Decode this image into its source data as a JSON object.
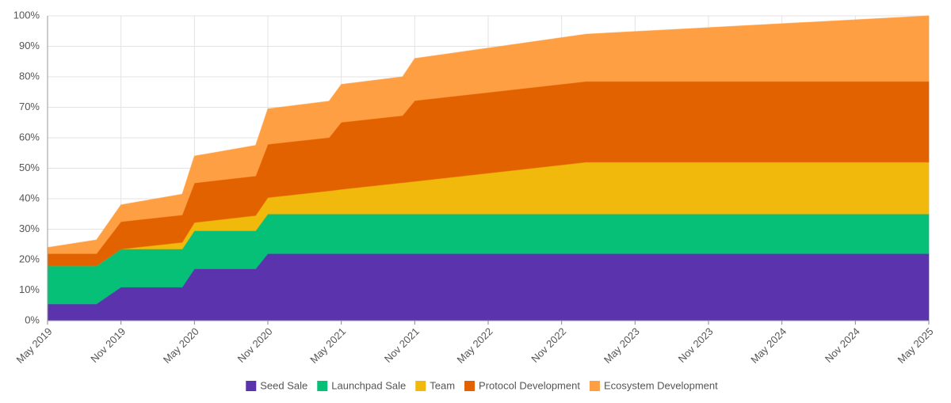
{
  "chart_data": {
    "type": "stacked-area",
    "x": [
      "2019-05",
      "2019-09",
      "2019-11",
      "2020-04",
      "2020-05",
      "2020-10",
      "2020-11",
      "2021-04",
      "2021-05",
      "2021-10",
      "2021-11",
      "2023-01",
      "2025-05"
    ],
    "series": [
      {
        "name": "Seed Sale",
        "color": "#5b34ad",
        "values": [
          5.5,
          5.5,
          11,
          11,
          17,
          17,
          22,
          22,
          22,
          22,
          22,
          22,
          22
        ]
      },
      {
        "name": "Launchpad Sale",
        "color": "#05c076",
        "values": [
          12.5,
          12.5,
          12.5,
          12.5,
          12.5,
          12.5,
          13,
          13,
          13,
          13,
          13,
          13,
          13
        ]
      },
      {
        "name": "Team",
        "color": "#f0b90b",
        "values": [
          0,
          0,
          0,
          2.2,
          2.7,
          5,
          5.4,
          7.6,
          8.1,
          10.3,
          10.7,
          17,
          17
        ]
      },
      {
        "name": "Protocol Development",
        "color": "#e36200",
        "values": [
          4,
          4,
          9,
          9,
          13,
          13,
          17.5,
          17.5,
          22,
          22,
          26.5,
          26.5,
          26.5
        ]
      },
      {
        "name": "Ecosystem Development",
        "color": "#ff9f43",
        "values": [
          2,
          4.5,
          5.5,
          6.8,
          8.8,
          10,
          11.6,
          11.9,
          12.4,
          12.7,
          13.8,
          15.5,
          21.5
        ]
      }
    ],
    "xlim": [
      "2019-05",
      "2025-05"
    ],
    "xticks": [
      {
        "value": "2019-05",
        "label": "May 2019"
      },
      {
        "value": "2019-11",
        "label": "Nov 2019"
      },
      {
        "value": "2020-05",
        "label": "May 2020"
      },
      {
        "value": "2020-11",
        "label": "Nov 2020"
      },
      {
        "value": "2021-05",
        "label": "May 2021"
      },
      {
        "value": "2021-11",
        "label": "Nov 2021"
      },
      {
        "value": "2022-05",
        "label": "May 2022"
      },
      {
        "value": "2022-11",
        "label": "Nov 2022"
      },
      {
        "value": "2023-05",
        "label": "May 2023"
      },
      {
        "value": "2023-11",
        "label": "Nov 2023"
      },
      {
        "value": "2024-05",
        "label": "May 2024"
      },
      {
        "value": "2024-11",
        "label": "Nov 2024"
      },
      {
        "value": "2025-05",
        "label": "May 2025"
      }
    ],
    "ylim": [
      0,
      100
    ],
    "yticks": [
      {
        "value": 0,
        "label": "0%"
      },
      {
        "value": 10,
        "label": "10%"
      },
      {
        "value": 20,
        "label": "20%"
      },
      {
        "value": 30,
        "label": "30%"
      },
      {
        "value": 40,
        "label": "40%"
      },
      {
        "value": 50,
        "label": "50%"
      },
      {
        "value": 60,
        "label": "60%"
      },
      {
        "value": 70,
        "label": "70%"
      },
      {
        "value": 80,
        "label": "80%"
      },
      {
        "value": 90,
        "label": "90%"
      },
      {
        "value": 100,
        "label": "100%"
      }
    ],
    "grid": true,
    "legend": "bottom"
  }
}
